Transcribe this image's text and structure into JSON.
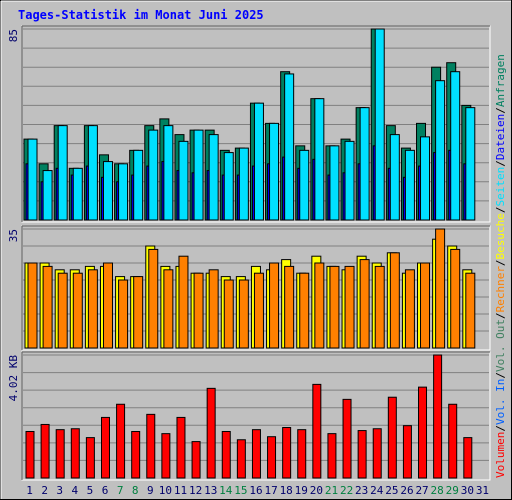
{
  "title": "Tages-Statistik im Monat Juni 2025",
  "legend_separator": "/",
  "chart_data": [
    {
      "type": "bar",
      "ylim": [
        0,
        85
      ],
      "yticks": [
        85
      ],
      "series": [
        {
          "name": "Anfragen",
          "color": "#008060",
          "values": [
            36,
            25,
            42,
            23,
            42,
            29,
            25,
            31,
            42,
            45,
            38,
            40,
            40,
            31,
            32,
            52,
            43,
            66,
            33,
            54,
            33,
            36,
            50,
            85,
            42,
            32,
            43,
            68,
            70,
            51,
            null
          ]
        },
        {
          "name": "Dateien",
          "color": "#0000ff",
          "values": [
            25,
            17,
            23,
            20,
            24,
            19,
            17,
            20,
            24,
            26,
            22,
            21,
            22,
            20,
            20,
            24,
            25,
            28,
            23,
            27,
            20,
            21,
            25,
            33,
            23,
            19,
            24,
            30,
            31,
            25,
            null
          ]
        },
        {
          "name": "Seiten",
          "color": "#00e0ff",
          "values": [
            36,
            22,
            42,
            23,
            42,
            26,
            25,
            31,
            40,
            42,
            35,
            40,
            38,
            30,
            32,
            52,
            43,
            65,
            31,
            54,
            33,
            35,
            50,
            85,
            38,
            31,
            37,
            62,
            66,
            50,
            null
          ]
        }
      ]
    },
    {
      "type": "bar",
      "ylim": [
        0,
        35
      ],
      "yticks": [
        35
      ],
      "series": [
        {
          "name": "Besuche",
          "color": "#ffff00",
          "values": [
            25,
            25,
            23,
            23,
            24,
            24,
            21,
            21,
            30,
            24,
            24,
            22,
            22,
            21,
            21,
            24,
            23,
            26,
            22,
            27,
            24,
            23,
            27,
            25,
            28,
            22,
            25,
            32,
            30,
            23,
            null
          ]
        },
        {
          "name": "Rechner",
          "color": "#ff8000",
          "values": [
            25,
            24,
            22,
            22,
            23,
            25,
            20,
            21,
            29,
            23,
            27,
            22,
            23,
            20,
            20,
            22,
            25,
            24,
            22,
            25,
            24,
            24,
            26,
            24,
            28,
            23,
            25,
            35,
            29,
            22,
            null
          ]
        }
      ]
    },
    {
      "type": "bar",
      "ylim": [
        0,
        4.02
      ],
      "yticks": [
        {
          "value": 4.02,
          "label": "4.02 KB"
        }
      ],
      "categories": [
        "1",
        "2",
        "3",
        "4",
        "5",
        "6",
        "7",
        "8",
        "9",
        "10",
        "11",
        "12",
        "13",
        "14",
        "15",
        "16",
        "17",
        "18",
        "19",
        "20",
        "21",
        "22",
        "23",
        "24",
        "25",
        "26",
        "27",
        "28",
        "29",
        "30",
        "31"
      ],
      "label_colors": [
        "#00006c",
        "#00006c",
        "#00006c",
        "#00006c",
        "#00006c",
        "#00006c",
        "#008040",
        "#008040",
        "#00006c",
        "#00006c",
        "#00006c",
        "#00006c",
        "#00006c",
        "#008040",
        "#008040",
        "#00006c",
        "#00006c",
        "#00006c",
        "#00006c",
        "#00006c",
        "#008040",
        "#008040",
        "#00006c",
        "#00006c",
        "#00006c",
        "#00006c",
        "#00006c",
        "#008040",
        "#008040",
        "#00006c",
        "#00006c"
      ],
      "series": [
        {
          "name": "Vol. Out",
          "color": "#408060",
          "values": [
            0,
            0,
            0,
            0,
            0,
            0,
            0,
            0,
            0,
            0,
            0,
            0,
            0,
            0,
            0,
            0,
            0,
            0,
            0,
            0,
            0,
            0,
            0,
            0,
            0,
            0,
            0,
            0,
            0,
            0,
            null
          ]
        },
        {
          "name": "Vol. In",
          "color": "#0060ff",
          "values": [
            0,
            0,
            0,
            0,
            0,
            0,
            0,
            0,
            0,
            0,
            0,
            0,
            0,
            0,
            0,
            0,
            0,
            0,
            0,
            0,
            0,
            0,
            0,
            0,
            0,
            0,
            0,
            0,
            0,
            0,
            null
          ]
        },
        {
          "name": "Volumen",
          "color": "#ff0000",
          "values": [
            1.52,
            1.75,
            1.58,
            1.61,
            1.32,
            1.98,
            2.41,
            1.52,
            2.08,
            1.45,
            1.98,
            1.19,
            2.93,
            1.52,
            1.25,
            1.58,
            1.35,
            1.65,
            1.58,
            3.06,
            1.45,
            2.57,
            1.55,
            1.61,
            2.64,
            1.71,
            2.97,
            4.02,
            2.41,
            1.32,
            null
          ]
        }
      ]
    }
  ]
}
